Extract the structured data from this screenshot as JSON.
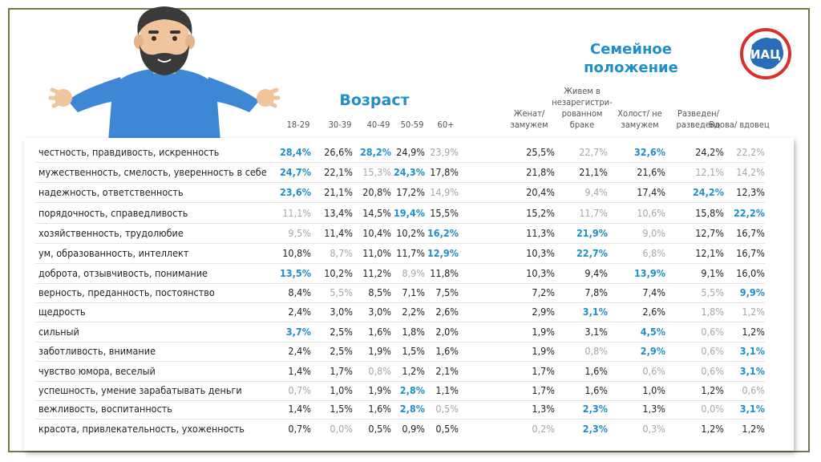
{
  "logo_text": "ИАЦ",
  "colors": {
    "accent": "#1f8fc8",
    "muted": "#a6a6a6",
    "text": "#222222",
    "frame": "#6b7a4f",
    "shirt": "#3d87d4"
  },
  "chart_data": {
    "type": "table",
    "groups": [
      {
        "title": "Возраст",
        "columns": [
          "18-29",
          "30-39",
          "40-49",
          "50-59",
          "60+"
        ]
      },
      {
        "title": "Семейное положение",
        "columns": [
          "Женат/ замужем",
          "Живем в незарегистри- рованном браке",
          "Холост/ не замужем",
          "Разведен/ разведена",
          "Вдова/ вдовец"
        ]
      }
    ],
    "rows": [
      {
        "label": "честность, правдивость, искренность",
        "values": [
          "28,4%",
          "26,6%",
          "28,2%",
          "24,9%",
          "23,9%",
          "25,5%",
          "22,7%",
          "32,6%",
          "24,2%",
          "22,2%"
        ],
        "styles": [
          "hi",
          "",
          "hi",
          "",
          "lo",
          "",
          "lo",
          "hi",
          "",
          "lo"
        ]
      },
      {
        "label": "мужественность, смелость, уверенность в себе",
        "values": [
          "24,7%",
          "22,1%",
          "15,3%",
          "24,3%",
          "17,8%",
          "21,8%",
          "21,1%",
          "21,6%",
          "12,1%",
          "14,2%"
        ],
        "styles": [
          "hi",
          "",
          "lo",
          "hi",
          "",
          "",
          "",
          "",
          "lo",
          "lo"
        ]
      },
      {
        "label": "надежность, ответственность",
        "values": [
          "23,6%",
          "21,1%",
          "20,8%",
          "17,2%",
          "14,9%",
          "20,4%",
          "9,4%",
          "17,4%",
          "24,2%",
          "12,3%"
        ],
        "styles": [
          "hi",
          "",
          "",
          "",
          "lo",
          "",
          "lo",
          "",
          "hi",
          ""
        ]
      },
      {
        "label": "порядочность, справедливость",
        "values": [
          "11,1%",
          "13,4%",
          "14,5%",
          "19,4%",
          "15,5%",
          "15,2%",
          "11,7%",
          "10,6%",
          "15,8%",
          "22,2%"
        ],
        "styles": [
          "lo",
          "",
          "",
          "hi",
          "",
          "",
          "lo",
          "lo",
          "",
          "hi"
        ]
      },
      {
        "label": "хозяйственность, трудолюбие",
        "values": [
          "9,5%",
          "11,4%",
          "10,4%",
          "10,2%",
          "16,2%",
          "11,3%",
          "21,9%",
          "9,0%",
          "12,7%",
          "16,7%"
        ],
        "styles": [
          "lo",
          "",
          "",
          "",
          "hi",
          "",
          "hi",
          "lo",
          "",
          ""
        ]
      },
      {
        "label": "ум, образованность, интеллект",
        "values": [
          "10,8%",
          "8,7%",
          "11,0%",
          "11,7%",
          "12,9%",
          "10,3%",
          "22,7%",
          "6,8%",
          "12,1%",
          "16,7%"
        ],
        "styles": [
          "",
          "lo",
          "",
          "",
          "hi",
          "",
          "hi",
          "lo",
          "",
          ""
        ]
      },
      {
        "label": "доброта, отзывчивость, понимание",
        "values": [
          "13,5%",
          "10,2%",
          "11,2%",
          "8,9%",
          "11,8%",
          "10,3%",
          "9,4%",
          "13,9%",
          "9,1%",
          "16,0%"
        ],
        "styles": [
          "hi",
          "",
          "",
          "lo",
          "",
          "",
          "",
          "hi",
          "",
          ""
        ]
      },
      {
        "label": "верность, преданность, постоянство",
        "values": [
          "8,4%",
          "5,5%",
          "8,5%",
          "7,1%",
          "7,5%",
          "7,2%",
          "7,8%",
          "7,4%",
          "5,5%",
          "9,9%"
        ],
        "styles": [
          "",
          "lo",
          "",
          "",
          "",
          "",
          "",
          "",
          "lo",
          "hi"
        ]
      },
      {
        "label": "щедрость",
        "values": [
          "2,4%",
          "3,0%",
          "3,0%",
          "2,2%",
          "2,6%",
          "2,9%",
          "3,1%",
          "2,6%",
          "1,8%",
          "1,2%"
        ],
        "styles": [
          "",
          "",
          "",
          "",
          "",
          "",
          "hi",
          "",
          "lo",
          "lo"
        ]
      },
      {
        "label": "сильный",
        "values": [
          "3,7%",
          "2,5%",
          "1,6%",
          "1,8%",
          "2,0%",
          "1,9%",
          "3,1%",
          "4,5%",
          "0,6%",
          "1,2%"
        ],
        "styles": [
          "hi",
          "",
          "",
          "",
          "",
          "",
          "",
          "hi",
          "lo",
          ""
        ]
      },
      {
        "label": "заботливость, внимание",
        "values": [
          "2,4%",
          "2,5%",
          "1,9%",
          "1,5%",
          "1,6%",
          "1,9%",
          "0,8%",
          "2,9%",
          "0,6%",
          "3,1%"
        ],
        "styles": [
          "",
          "",
          "",
          "",
          "",
          "",
          "lo",
          "hi",
          "lo",
          "hi"
        ]
      },
      {
        "label": "чувство юмора, веселый",
        "values": [
          "1,4%",
          "1,7%",
          "0,8%",
          "1,2%",
          "2,1%",
          "1,7%",
          "1,6%",
          "0,6%",
          "0,6%",
          "3,1%"
        ],
        "styles": [
          "",
          "",
          "lo",
          "",
          "",
          "",
          "",
          "lo",
          "lo",
          "hi"
        ]
      },
      {
        "label": "успешность, умение зарабатывать деньги",
        "values": [
          "0,7%",
          "1,0%",
          "1,9%",
          "2,8%",
          "1,1%",
          "1,7%",
          "1,6%",
          "1,0%",
          "1,2%",
          "0,6%"
        ],
        "styles": [
          "lo",
          "",
          "",
          "hi",
          "",
          "",
          "",
          "",
          "",
          "lo"
        ]
      },
      {
        "label": "вежливость, воспитанность",
        "values": [
          "1,4%",
          "1,5%",
          "1,6%",
          "2,8%",
          "0,5%",
          "1,3%",
          "2,3%",
          "1,3%",
          "0,0%",
          "3,1%"
        ],
        "styles": [
          "",
          "",
          "",
          "hi",
          "lo",
          "",
          "hi",
          "",
          "lo",
          "hi"
        ]
      },
      {
        "label": "красота, привлекательность, ухоженность",
        "values": [
          "0,7%",
          "0,0%",
          "0,5%",
          "0,9%",
          "0,5%",
          "0,2%",
          "2,3%",
          "0,3%",
          "1,2%",
          "1,2%"
        ],
        "styles": [
          "",
          "lo",
          "",
          "",
          "",
          "lo",
          "hi",
          "lo",
          "",
          ""
        ]
      }
    ]
  }
}
